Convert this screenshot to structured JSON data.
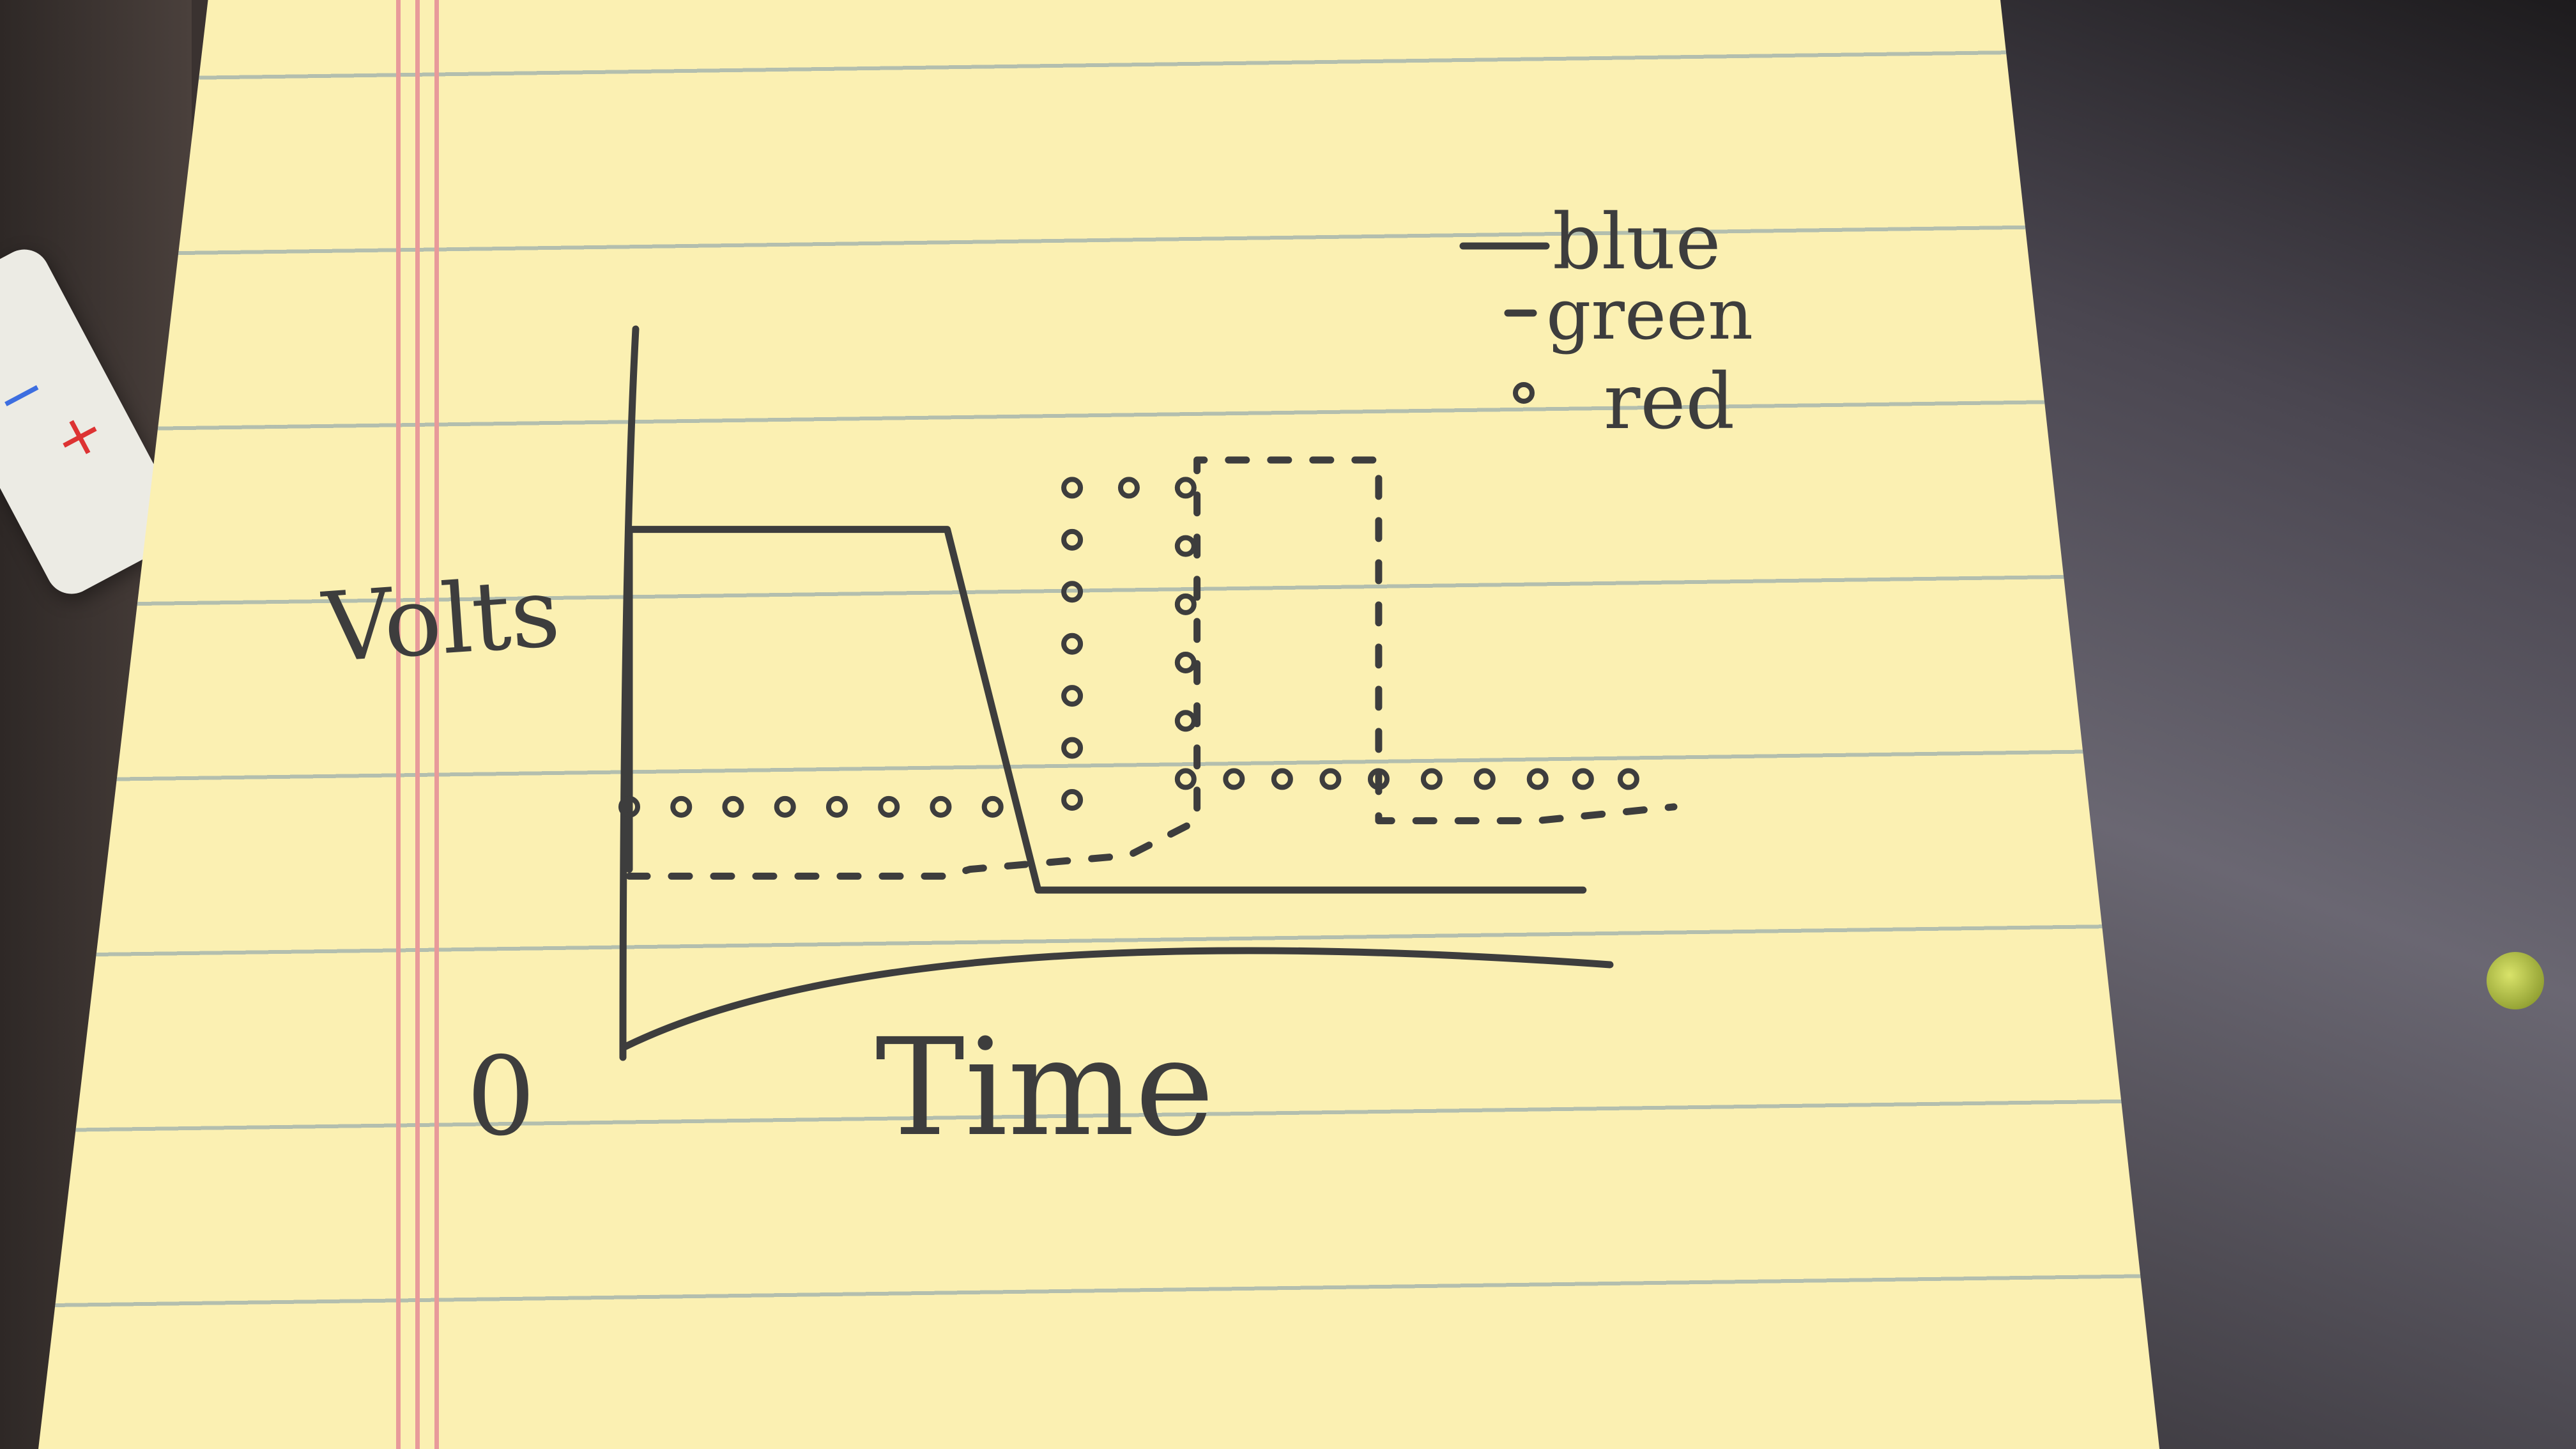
{
  "chart_data": {
    "type": "line",
    "ylabel": "Volts",
    "xlabel": "Time",
    "y_origin_label": "0",
    "legend_placement": "top-right",
    "series": [
      {
        "name": "blue",
        "style": "solid",
        "x": [
          0,
          0,
          1.4,
          1.8,
          4.2
        ],
        "y": [
          0.55,
          3.0,
          3.0,
          0.4,
          0.4
        ]
      },
      {
        "name": "green",
        "style": "dashed",
        "x": [
          0,
          1.4,
          1.5,
          2.2,
          2.5,
          2.5,
          3.3,
          3.3,
          4.0,
          4.6
        ],
        "y": [
          0.5,
          0.5,
          0.55,
          0.65,
          0.9,
          3.5,
          3.5,
          0.9,
          0.9,
          1.0
        ]
      },
      {
        "name": "red",
        "style": "dotted",
        "x": [
          0,
          1.6,
          1.95,
          1.95,
          2.45,
          2.45,
          3.3,
          4.0,
          4.6
        ],
        "y": [
          1.0,
          1.0,
          1.05,
          3.3,
          3.3,
          1.2,
          1.2,
          1.2,
          1.2
        ]
      }
    ],
    "legend": [
      {
        "marker": "—",
        "label": "blue"
      },
      {
        "marker": "-",
        "label": "green"
      },
      {
        "marker": "o",
        "label": "red"
      }
    ]
  },
  "colors": {
    "paper": "#fbf0b2",
    "ink": "#3d3d3d",
    "margin": "#e89a9a"
  }
}
